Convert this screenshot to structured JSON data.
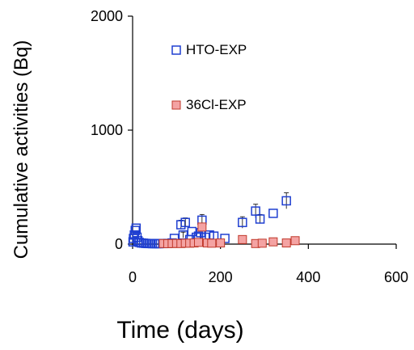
{
  "chart_data": {
    "type": "scatter",
    "xlabel": "Time (days)",
    "ylabel": "Cumulative activities (Bq)",
    "xlim": [
      0,
      600
    ],
    "ylim": [
      0,
      2000
    ],
    "x_ticks": [
      "0",
      "200",
      "400",
      "600"
    ],
    "y_ticks": [
      "0",
      "1000",
      "2000"
    ],
    "grid": false,
    "legend_position": "upper-left inside plot",
    "series": [
      {
        "name": "HTO-EXP",
        "marker": "open-square",
        "color": "#1f3fd1",
        "points": [
          {
            "x": 1,
            "y": 20
          },
          {
            "x": 2,
            "y": 50
          },
          {
            "x": 4,
            "y": 80
          },
          {
            "x": 6,
            "y": 120
          },
          {
            "x": 8,
            "y": 140
          },
          {
            "x": 10,
            "y": 60
          },
          {
            "x": 12,
            "y": 30
          },
          {
            "x": 15,
            "y": 15
          },
          {
            "x": 20,
            "y": 10
          },
          {
            "x": 25,
            "y": 8
          },
          {
            "x": 30,
            "y": 6
          },
          {
            "x": 35,
            "y": 5
          },
          {
            "x": 40,
            "y": 5
          },
          {
            "x": 45,
            "y": 4
          },
          {
            "x": 50,
            "y": 4
          },
          {
            "x": 55,
            "y": 4
          },
          {
            "x": 60,
            "y": 4
          },
          {
            "x": 70,
            "y": 5
          },
          {
            "x": 80,
            "y": 6
          },
          {
            "x": 90,
            "y": 10
          },
          {
            "x": 95,
            "y": 50
          },
          {
            "x": 110,
            "y": 170,
            "err": 40
          },
          {
            "x": 115,
            "y": 80,
            "err": 25
          },
          {
            "x": 120,
            "y": 190,
            "err": 40
          },
          {
            "x": 130,
            "y": 40
          },
          {
            "x": 135,
            "y": 110
          },
          {
            "x": 145,
            "y": 60
          },
          {
            "x": 150,
            "y": 70
          },
          {
            "x": 155,
            "y": 100
          },
          {
            "x": 158,
            "y": 210,
            "err": 50
          },
          {
            "x": 165,
            "y": 60
          },
          {
            "x": 175,
            "y": 80
          },
          {
            "x": 185,
            "y": 70
          },
          {
            "x": 210,
            "y": 50
          },
          {
            "x": 250,
            "y": 190,
            "err": 50
          },
          {
            "x": 280,
            "y": 290,
            "err": 60
          },
          {
            "x": 290,
            "y": 220,
            "err": 40
          },
          {
            "x": 320,
            "y": 270
          },
          {
            "x": 350,
            "y": 380,
            "err": 70
          }
        ]
      },
      {
        "name": "36Cl-EXP",
        "marker": "filled-square",
        "color": "#f4a3a3",
        "edge_color": "#c0392b",
        "points": [
          {
            "x": 70,
            "y": 5
          },
          {
            "x": 80,
            "y": 4
          },
          {
            "x": 90,
            "y": 5
          },
          {
            "x": 100,
            "y": 6
          },
          {
            "x": 110,
            "y": 5
          },
          {
            "x": 120,
            "y": 8
          },
          {
            "x": 130,
            "y": 8
          },
          {
            "x": 140,
            "y": 10
          },
          {
            "x": 150,
            "y": 15
          },
          {
            "x": 158,
            "y": 150,
            "err": 30
          },
          {
            "x": 170,
            "y": 10
          },
          {
            "x": 180,
            "y": 8
          },
          {
            "x": 200,
            "y": 10
          },
          {
            "x": 250,
            "y": 40
          },
          {
            "x": 280,
            "y": 5
          },
          {
            "x": 295,
            "y": 8
          },
          {
            "x": 320,
            "y": 20
          },
          {
            "x": 350,
            "y": 10
          },
          {
            "x": 370,
            "y": 30
          }
        ]
      }
    ]
  }
}
